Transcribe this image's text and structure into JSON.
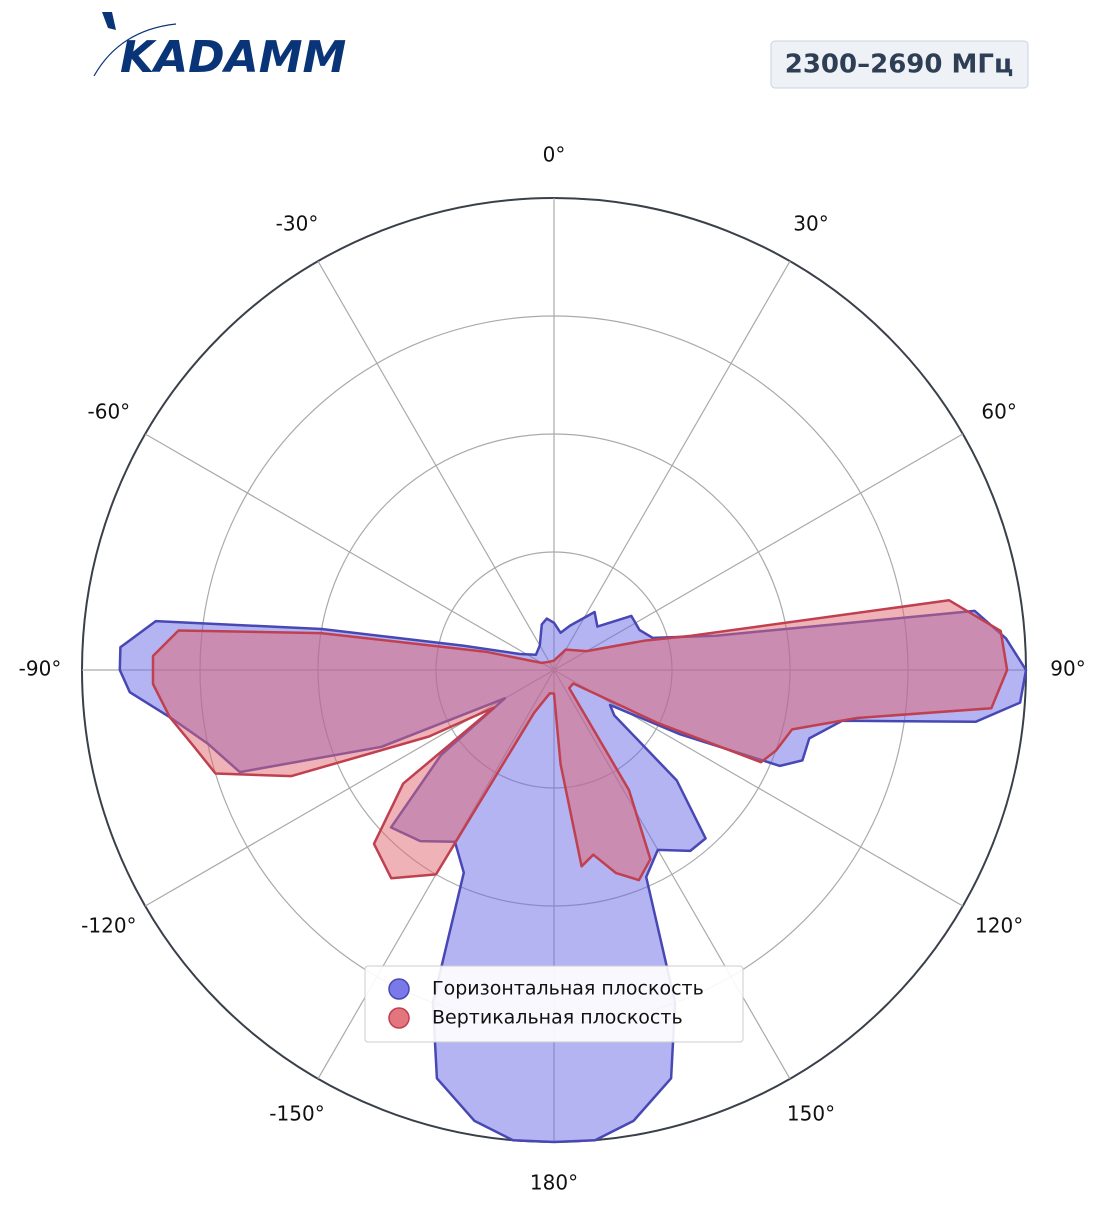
{
  "chart_data": {
    "type": "polar",
    "logo": "KADAMM",
    "title": "2300–2690 МГц",
    "ylim": [
      0,
      1
    ],
    "yticks": [
      0.25,
      0.5,
      0.75,
      1
    ],
    "grid": true,
    "direction": "clockwise",
    "zero": "top",
    "xticks": [
      {
        "value": 0,
        "label": "0°"
      },
      {
        "value": 30,
        "label": "30°"
      },
      {
        "value": 60,
        "label": "60°"
      },
      {
        "value": 90,
        "label": "90°"
      },
      {
        "value": 120,
        "label": "120°"
      },
      {
        "value": 150,
        "label": "150°"
      },
      {
        "value": 180,
        "label": "180°"
      },
      {
        "value": -150,
        "label": "-150°"
      },
      {
        "value": -120,
        "label": "-120°"
      },
      {
        "value": -90,
        "label": "-90°"
      },
      {
        "value": -60,
        "label": "-60°"
      },
      {
        "value": -30,
        "label": "-30°"
      }
    ],
    "legend": "lower center",
    "series": [
      {
        "name": "Горизонтальная плоскость",
        "color": "#6a6ae8",
        "edge": "#4848b4",
        "theta": [
          0,
          10,
          20,
          35,
          45,
          55,
          65,
          72,
          78,
          82,
          86,
          90,
          94,
          97,
          100,
          105,
          110,
          113,
          117,
          122,
          127,
          132,
          138,
          143,
          150,
          156,
          160,
          164,
          170,
          175,
          180,
          185,
          190,
          196,
          200,
          204,
          210,
          218,
          226,
          233,
          240,
          246,
          252,
          258,
          263,
          267,
          270,
          273,
          277,
          280,
          285,
          295,
          310,
          330,
          345,
          352
        ],
        "values": [
          0.1,
          0.08,
          0.1,
          0.15,
          0.13,
          0.2,
          0.2,
          0.22,
          0.35,
          0.9,
          0.96,
          1.0,
          0.99,
          0.9,
          0.62,
          0.56,
          0.56,
          0.52,
          0.3,
          0.14,
          0.16,
          0.35,
          0.48,
          0.48,
          0.44,
          0.48,
          0.75,
          0.9,
          0.97,
          1.0,
          1.0,
          1.0,
          0.97,
          0.9,
          0.75,
          0.47,
          0.42,
          0.46,
          0.48,
          0.3,
          0.12,
          0.4,
          0.7,
          0.75,
          0.82,
          0.9,
          0.92,
          0.92,
          0.85,
          0.5,
          0.2,
          0.08,
          0.05,
          0.06,
          0.1,
          0.11
        ]
      },
      {
        "name": "Вертикальная плоскость",
        "color": "#e06670",
        "edge": "#c04050",
        "theta": [
          0,
          30,
          60,
          72,
          76,
          80,
          85,
          90,
          95,
          99,
          104,
          110,
          114,
          117,
          125,
          140,
          148,
          153,
          158,
          163,
          168,
          172,
          176,
          180,
          190,
          205,
          210,
          218,
          226,
          233,
          238,
          242,
          248,
          253,
          258,
          263,
          268,
          272,
          276,
          279,
          285,
          300,
          330
        ],
        "values": [
          0.02,
          0.05,
          0.08,
          0.2,
          0.3,
          0.85,
          0.95,
          0.96,
          0.93,
          0.65,
          0.52,
          0.5,
          0.48,
          0.25,
          0.05,
          0.05,
          0.3,
          0.45,
          0.48,
          0.45,
          0.4,
          0.42,
          0.2,
          0.05,
          0.05,
          0.1,
          0.5,
          0.56,
          0.53,
          0.4,
          0.15,
          0.3,
          0.6,
          0.75,
          0.78,
          0.82,
          0.85,
          0.85,
          0.8,
          0.5,
          0.15,
          0.03,
          0.02
        ]
      }
    ]
  }
}
